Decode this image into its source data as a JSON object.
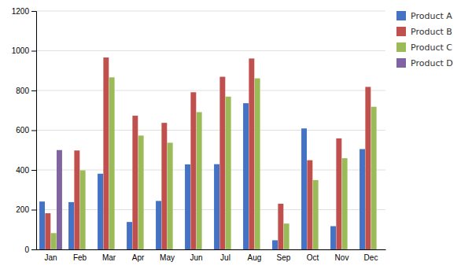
{
  "chart_data": {
    "type": "bar",
    "categories": [
      "Jan",
      "Feb",
      "Mar",
      "Apr",
      "May",
      "Jun",
      "Jul",
      "Aug",
      "Sep",
      "Oct",
      "Nov",
      "Dec"
    ],
    "series": [
      {
        "name": "Product A",
        "color": "#4472C4",
        "values": [
          241,
          238,
          381,
          138,
          244,
          428,
          429,
          736,
          46,
          609,
          117,
          505
        ]
      },
      {
        "name": "Product B",
        "color": "#C0504D",
        "values": [
          182,
          498,
          966,
          673,
          637,
          791,
          869,
          961,
          230,
          449,
          559,
          818
        ]
      },
      {
        "name": "Product C",
        "color": "#9BBB59",
        "values": [
          82,
          398,
          866,
          573,
          537,
          691,
          769,
          861,
          130,
          349,
          459,
          718
        ]
      },
      {
        "name": "Product D",
        "color": "#8064A2",
        "values": [
          500,
          0,
          0,
          0,
          0,
          0,
          0,
          0,
          0,
          0,
          0,
          0
        ]
      }
    ],
    "ylim": [
      0,
      1200
    ],
    "yticks": [
      0,
      200,
      400,
      600,
      800,
      1000,
      1200
    ],
    "grid": true,
    "legend": "right"
  }
}
